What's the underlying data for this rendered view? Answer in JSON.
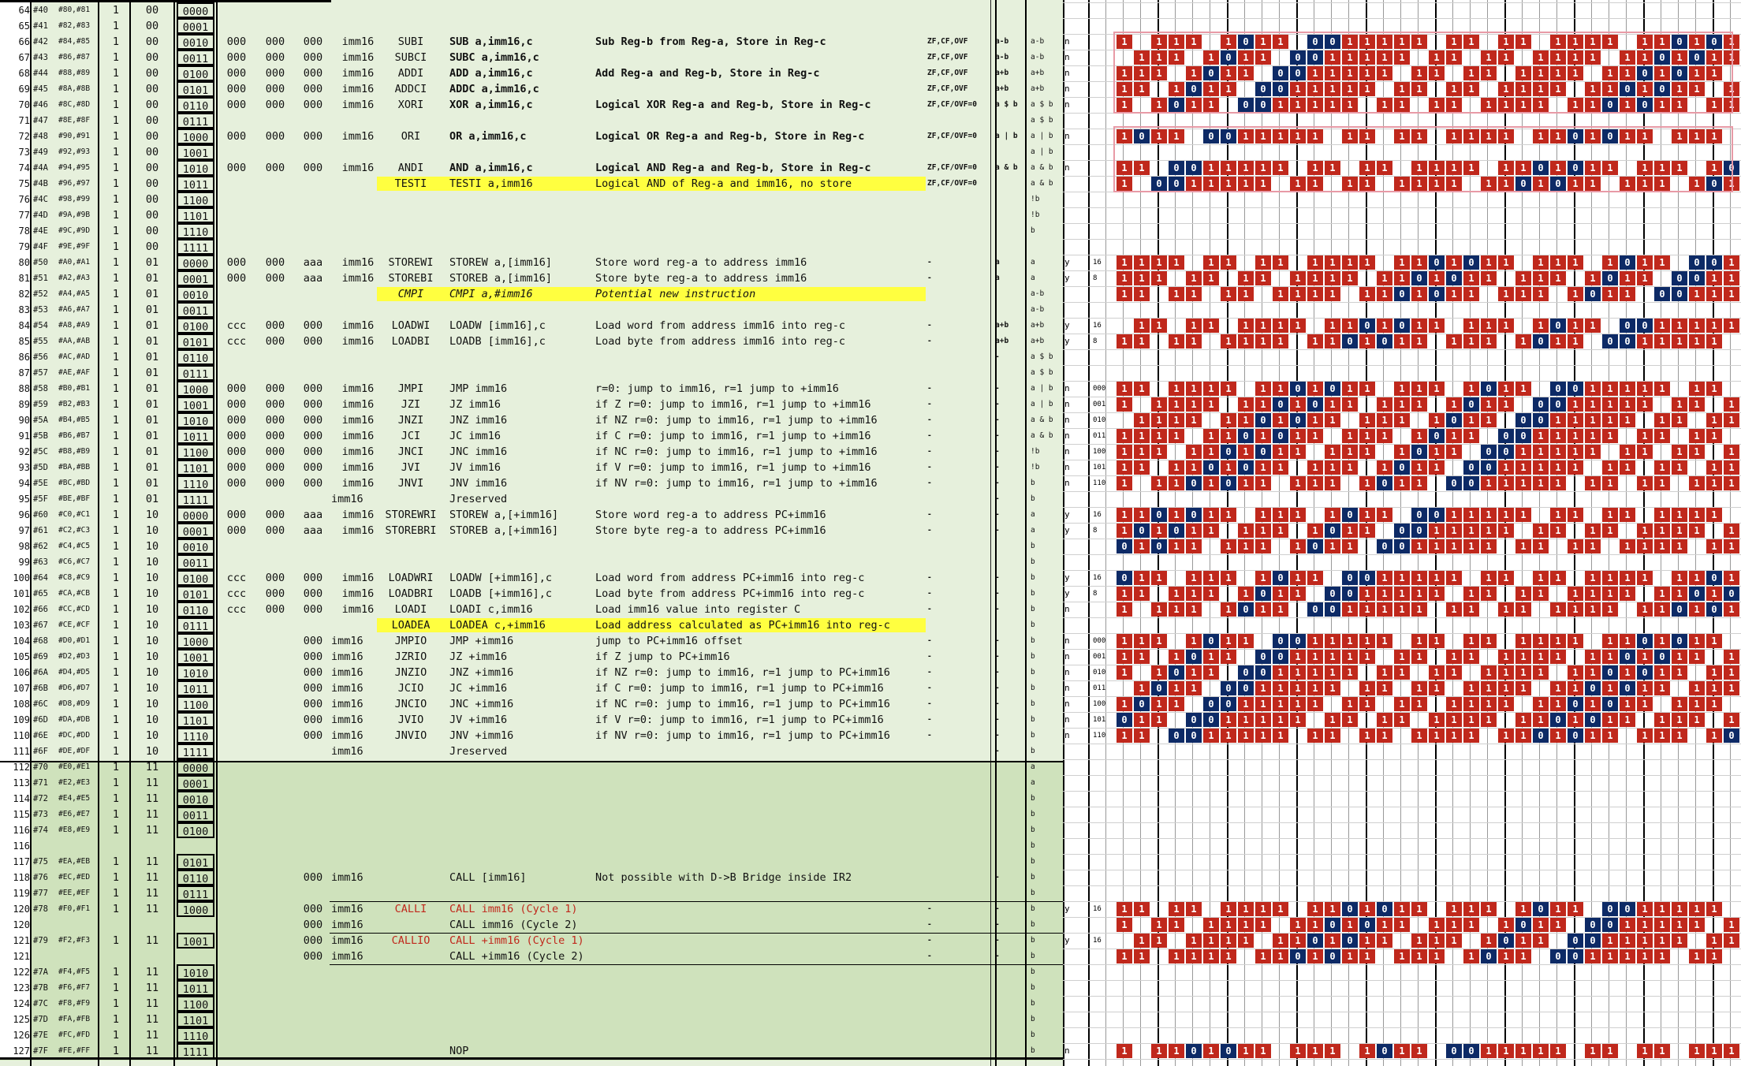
{
  "rows": [
    {
      "n": "64",
      "h": "#40",
      "p": "#80,#81",
      "one": "1",
      "two": "00",
      "op": "0000"
    },
    {
      "n": "65",
      "h": "#41",
      "p": "#82,#83",
      "one": "1",
      "two": "00",
      "op": "0001"
    },
    {
      "n": "66",
      "h": "#42",
      "p": "#84,#85",
      "one": "1",
      "two": "00",
      "op": "0010",
      "a": "000",
      "b": "000",
      "c": "000",
      "imm": "imm16",
      "mn": "SUBI",
      "syn": "SUB a,imm16,c",
      "desc": "Sub Reg-b from Reg-a, Store in Reg-c",
      "fl": "ZF,CF,OVF",
      "l1": "a-b",
      "l2": "a-b",
      "bold": true
    },
    {
      "n": "67",
      "h": "#43",
      "p": "#86,#87",
      "one": "1",
      "two": "00",
      "op": "0011",
      "a": "000",
      "b": "000",
      "c": "000",
      "imm": "imm16",
      "mn": "SUBCI",
      "syn": "SUBC a,imm16,c",
      "desc": "",
      "fl": "ZF,CF,OVF",
      "l1": "a-b",
      "l2": "a-b",
      "bold": true
    },
    {
      "n": "68",
      "h": "#44",
      "p": "#88,#89",
      "one": "1",
      "two": "00",
      "op": "0100",
      "a": "000",
      "b": "000",
      "c": "000",
      "imm": "imm16",
      "mn": "ADDI",
      "syn": "ADD a,imm16,c",
      "desc": "Add Reg-a and Reg-b, Store in Reg-c",
      "fl": "ZF,CF,OVF",
      "l1": "a+b",
      "l2": "a+b",
      "bold": true
    },
    {
      "n": "69",
      "h": "#45",
      "p": "#8A,#8B",
      "one": "1",
      "two": "00",
      "op": "0101",
      "a": "000",
      "b": "000",
      "c": "000",
      "imm": "imm16",
      "mn": "ADDCI",
      "syn": "ADDC a,imm16,c",
      "desc": "",
      "fl": "ZF,CF,OVF",
      "l1": "a+b",
      "l2": "a+b",
      "bold": true
    },
    {
      "n": "70",
      "h": "#46",
      "p": "#8C,#8D",
      "one": "1",
      "two": "00",
      "op": "0110",
      "a": "000",
      "b": "000",
      "c": "000",
      "imm": "imm16",
      "mn": "XORI",
      "syn": "XOR a,imm16,c",
      "desc": "Logical XOR Reg-a and Reg-b, Store in Reg-c",
      "fl": "ZF,CF/OVF=0",
      "l1": "a $ b",
      "l2": "a $ b",
      "bold": true
    },
    {
      "n": "71",
      "h": "#47",
      "p": "#8E,#8F",
      "one": "1",
      "two": "00",
      "op": "0111",
      "l2": "a $ b"
    },
    {
      "n": "72",
      "h": "#48",
      "p": "#90,#91",
      "one": "1",
      "two": "00",
      "op": "1000",
      "a": "000",
      "b": "000",
      "c": "000",
      "imm": "imm16",
      "mn": "ORI",
      "syn": "OR a,imm16,c",
      "desc": "Logical OR Reg-a and Reg-b, Store in Reg-c",
      "fl": "ZF,CF/OVF=0",
      "l1": "a | b",
      "l2": "a | b",
      "bold": true
    },
    {
      "n": "73",
      "h": "#49",
      "p": "#92,#93",
      "one": "1",
      "two": "00",
      "op": "1001",
      "l2": "a | b"
    },
    {
      "n": "74",
      "h": "#4A",
      "p": "#94,#95",
      "one": "1",
      "two": "00",
      "op": "1010",
      "a": "000",
      "b": "000",
      "c": "000",
      "imm": "imm16",
      "mn": "ANDI",
      "syn": "AND a,imm16,c",
      "desc": "Logical AND Reg-a and Reg-b, Store in Reg-c",
      "fl": "ZF,CF/OVF=0",
      "l1": "a & b",
      "l2": "a & b",
      "bold": true
    },
    {
      "n": "75",
      "h": "#4B",
      "p": "#96,#97",
      "one": "1",
      "two": "00",
      "op": "1011",
      "mn": "TESTI",
      "syn": "TESTI a,imm16",
      "desc": "Logical AND of Reg-a and imm16, no store",
      "fl": "ZF,CF/OVF=0",
      "l2": "a & b",
      "hl": true
    },
    {
      "n": "76",
      "h": "#4C",
      "p": "#98,#99",
      "one": "1",
      "two": "00",
      "op": "1100",
      "l2": "!b"
    },
    {
      "n": "77",
      "h": "#4D",
      "p": "#9A,#9B",
      "one": "1",
      "two": "00",
      "op": "1101",
      "l2": "!b"
    },
    {
      "n": "78",
      "h": "#4E",
      "p": "#9C,#9D",
      "one": "1",
      "two": "00",
      "op": "1110",
      "l2": "b"
    },
    {
      "n": "79",
      "h": "#4F",
      "p": "#9E,#9F",
      "one": "1",
      "two": "00",
      "op": "1111"
    },
    {
      "n": "80",
      "h": "#50",
      "p": "#A0,#A1",
      "one": "1",
      "two": "01",
      "op": "0000",
      "a": "000",
      "b": "000",
      "c": "aaa",
      "imm": "imm16",
      "mn": "STOREWI",
      "syn": "STOREW a,[imm16]",
      "desc": "Store word reg-a to address imm16",
      "fl": "-",
      "l1": "a",
      "l2": "a"
    },
    {
      "n": "81",
      "h": "#51",
      "p": "#A2,#A3",
      "one": "1",
      "two": "01",
      "op": "0001",
      "a": "000",
      "b": "000",
      "c": "aaa",
      "imm": "imm16",
      "mn": "STOREBI",
      "syn": "STOREB a,[imm16]",
      "desc": "Store byte reg-a to address imm16",
      "fl": "-",
      "l1": "a",
      "l2": "a"
    },
    {
      "n": "82",
      "h": "#52",
      "p": "#A4,#A5",
      "one": "1",
      "two": "01",
      "op": "0010",
      "mn": "CMPI",
      "syn": "CMPI a,#imm16",
      "desc": "Potential new instruction",
      "l2": "a-b",
      "hl": true,
      "it": true
    },
    {
      "n": "83",
      "h": "#53",
      "p": "#A6,#A7",
      "one": "1",
      "two": "01",
      "op": "0011",
      "l2": "a-b"
    },
    {
      "n": "84",
      "h": "#54",
      "p": "#A8,#A9",
      "one": "1",
      "two": "01",
      "op": "0100",
      "a": "ccc",
      "b": "000",
      "c": "000",
      "imm": "imm16",
      "mn": "LOADWI",
      "syn": "LOADW [imm16],c",
      "desc": "Load word from address imm16 into reg-c",
      "fl": "-",
      "l1": "a+b",
      "l2": "a+b"
    },
    {
      "n": "85",
      "h": "#55",
      "p": "#AA,#AB",
      "one": "1",
      "two": "01",
      "op": "0101",
      "a": "ccc",
      "b": "000",
      "c": "000",
      "imm": "imm16",
      "mn": "LOADBI",
      "syn": "LOADB [imm16],c",
      "desc": "Load byte from address imm16 into reg-c",
      "fl": "-",
      "l1": "a+b",
      "l2": "a+b"
    },
    {
      "n": "86",
      "h": "#56",
      "p": "#AC,#AD",
      "one": "1",
      "two": "01",
      "op": "0110",
      "l1": "-",
      "l2": "a $ b"
    },
    {
      "n": "87",
      "h": "#57",
      "p": "#AE,#AF",
      "one": "1",
      "two": "01",
      "op": "0111",
      "l2": "a $ b"
    },
    {
      "n": "88",
      "h": "#58",
      "p": "#B0,#B1",
      "one": "1",
      "two": "01",
      "op": "1000",
      "a": "000",
      "b": "000",
      "c": "000",
      "imm": "imm16",
      "mn": "JMPI",
      "syn": "JMP imm16",
      "desc": "r=0: jump to imm16, r=1 jump to +imm16",
      "fl": "-",
      "l1": "-",
      "l2": "a | b"
    },
    {
      "n": "89",
      "h": "#59",
      "p": "#B2,#B3",
      "one": "1",
      "two": "01",
      "op": "1001",
      "a": "000",
      "b": "000",
      "c": "000",
      "imm": "imm16",
      "mn": "JZI",
      "syn": "JZ imm16",
      "desc": "if Z r=0: jump to imm16, r=1 jump to +imm16",
      "fl": "-",
      "l1": "-",
      "l2": "a | b"
    },
    {
      "n": "90",
      "h": "#5A",
      "p": "#B4,#B5",
      "one": "1",
      "two": "01",
      "op": "1010",
      "a": "000",
      "b": "000",
      "c": "000",
      "imm": "imm16",
      "mn": "JNZI",
      "syn": "JNZ imm16",
      "desc": "if NZ r=0: jump to imm16, r=1 jump to +imm16",
      "fl": "-",
      "l1": "-",
      "l2": "a & b"
    },
    {
      "n": "91",
      "h": "#5B",
      "p": "#B6,#B7",
      "one": "1",
      "two": "01",
      "op": "1011",
      "a": "000",
      "b": "000",
      "c": "000",
      "imm": "imm16",
      "mn": "JCI",
      "syn": "JC imm16",
      "desc": "if C r=0: jump to imm16, r=1 jump to +imm16",
      "fl": "-",
      "l1": "-",
      "l2": "a & b"
    },
    {
      "n": "92",
      "h": "#5C",
      "p": "#B8,#B9",
      "one": "1",
      "two": "01",
      "op": "1100",
      "a": "000",
      "b": "000",
      "c": "000",
      "imm": "imm16",
      "mn": "JNCI",
      "syn": "JNC imm16",
      "desc": "if NC r=0: jump to imm16, r=1 jump to +imm16",
      "fl": "-",
      "l1": "-",
      "l2": "!b"
    },
    {
      "n": "93",
      "h": "#5D",
      "p": "#BA,#BB",
      "one": "1",
      "two": "01",
      "op": "1101",
      "a": "000",
      "b": "000",
      "c": "000",
      "imm": "imm16",
      "mn": "JVI",
      "syn": "JV imm16",
      "desc": "if V r=0: jump to imm16, r=1 jump to +imm16",
      "fl": "-",
      "l1": "-",
      "l2": "!b"
    },
    {
      "n": "94",
      "h": "#5E",
      "p": "#BC,#BD",
      "one": "1",
      "two": "01",
      "op": "1110",
      "a": "000",
      "b": "000",
      "c": "000",
      "imm": "imm16",
      "mn": "JNVI",
      "syn": "JNV imm16",
      "desc": "if NV r=0: jump to imm16, r=1 jump to +imm16",
      "fl": "-",
      "l1": "-",
      "l2": "b"
    },
    {
      "n": "95",
      "h": "#5F",
      "p": "#BE,#BF",
      "one": "1",
      "two": "01",
      "op": "1111",
      "imm": "imm16",
      "syn": "Jreserved",
      "l1": "-",
      "l2": "b"
    },
    {
      "n": "96",
      "h": "#60",
      "p": "#C0,#C1",
      "one": "1",
      "two": "10",
      "op": "0000",
      "a": "000",
      "b": "000",
      "c": "aaa",
      "imm": "imm16",
      "mn": "STOREWRI",
      "syn": "STOREW a,[+imm16]",
      "desc": "Store word reg-a to address PC+imm16",
      "fl": "-",
      "l1": "-",
      "l2": "a"
    },
    {
      "n": "97",
      "h": "#61",
      "p": "#C2,#C3",
      "one": "1",
      "two": "10",
      "op": "0001",
      "a": "000",
      "b": "000",
      "c": "aaa",
      "imm": "imm16",
      "mn": "STOREBRI",
      "syn": "STOREB a,[+imm16]",
      "desc": "Store byte reg-a to address PC+imm16",
      "fl": "-",
      "l1": "-",
      "l2": "a"
    },
    {
      "n": "98",
      "h": "#62",
      "p": "#C4,#C5",
      "one": "1",
      "two": "10",
      "op": "0010",
      "l2": "b"
    },
    {
      "n": "99",
      "h": "#63",
      "p": "#C6,#C7",
      "one": "1",
      "two": "10",
      "op": "0011",
      "l2": "b"
    },
    {
      "n": "100",
      "h": "#64",
      "p": "#C8,#C9",
      "one": "1",
      "two": "10",
      "op": "0100",
      "a": "ccc",
      "b": "000",
      "c": "000",
      "imm": "imm16",
      "mn": "LOADWRI",
      "syn": "LOADW [+imm16],c",
      "desc": "Load word from address PC+imm16 into reg-c",
      "fl": "-",
      "l1": "-",
      "l2": "b"
    },
    {
      "n": "101",
      "h": "#65",
      "p": "#CA,#CB",
      "one": "1",
      "two": "10",
      "op": "0101",
      "a": "ccc",
      "b": "000",
      "c": "000",
      "imm": "imm16",
      "mn": "LOADBRI",
      "syn": "LOADB [+imm16],c",
      "desc": "Load byte from address PC+imm16 into reg-c",
      "fl": "-",
      "l1": "-",
      "l2": "b"
    },
    {
      "n": "102",
      "h": "#66",
      "p": "#CC,#CD",
      "one": "1",
      "two": "10",
      "op": "0110",
      "a": "ccc",
      "b": "000",
      "c": "000",
      "imm": "imm16",
      "mn": "LOADI",
      "syn": "LOADI c,imm16",
      "desc": "Load imm16 value into register C",
      "fl": "-",
      "l1": "-",
      "l2": "b"
    },
    {
      "n": "103",
      "h": "#67",
      "p": "#CE,#CF",
      "one": "1",
      "two": "10",
      "op": "0111",
      "mn": "LOADEA",
      "syn": "LOADEA c,+imm16",
      "desc": "Load address calculated as PC+imm16 into reg-c",
      "l2": "b",
      "hl": true
    },
    {
      "n": "104",
      "h": "#68",
      "p": "#D0,#D1",
      "one": "1",
      "two": "10",
      "op": "1000",
      "c": "000",
      "imm": "imm16",
      "mn": "JMPIO",
      "syn": "JMP +imm16",
      "desc": "jump to PC+imm16 offset",
      "fl": "-",
      "l1": "-",
      "l2": "b"
    },
    {
      "n": "105",
      "h": "#69",
      "p": "#D2,#D3",
      "one": "1",
      "two": "10",
      "op": "1001",
      "c": "000",
      "imm": "imm16",
      "mn": "JZRIO",
      "syn": "JZ +imm16",
      "desc": "if Z jump to PC+imm16",
      "fl": "-",
      "l1": "-",
      "l2": "b"
    },
    {
      "n": "106",
      "h": "#6A",
      "p": "#D4,#D5",
      "one": "1",
      "two": "10",
      "op": "1010",
      "c": "000",
      "imm": "imm16",
      "mn": "JNZIO",
      "syn": "JNZ +imm16",
      "desc": "if NZ r=0: jump to imm16, r=1 jump to PC+imm16",
      "fl": "-",
      "l1": "-",
      "l2": "b"
    },
    {
      "n": "107",
      "h": "#6B",
      "p": "#D6,#D7",
      "one": "1",
      "two": "10",
      "op": "1011",
      "c": "000",
      "imm": "imm16",
      "mn": "JCIO",
      "syn": "JC +imm16",
      "desc": "if C r=0: jump to imm16, r=1 jump to PC+imm16",
      "fl": "-",
      "l1": "-",
      "l2": "b"
    },
    {
      "n": "108",
      "h": "#6C",
      "p": "#D8,#D9",
      "one": "1",
      "two": "10",
      "op": "1100",
      "c": "000",
      "imm": "imm16",
      "mn": "JNCIO",
      "syn": "JNC +imm16",
      "desc": "if NC r=0: jump to imm16, r=1 jump to PC+imm16",
      "fl": "-",
      "l1": "-",
      "l2": "b"
    },
    {
      "n": "109",
      "h": "#6D",
      "p": "#DA,#DB",
      "one": "1",
      "two": "10",
      "op": "1101",
      "c": "000",
      "imm": "imm16",
      "mn": "JVIO",
      "syn": "JV +imm16",
      "desc": "if V r=0: jump to imm16, r=1 jump to PC+imm16",
      "fl": "-",
      "l1": "-",
      "l2": "b"
    },
    {
      "n": "110",
      "h": "#6E",
      "p": "#DC,#DD",
      "one": "1",
      "two": "10",
      "op": "1110",
      "c": "000",
      "imm": "imm16",
      "mn": "JNVIO",
      "syn": "JNV +imm16",
      "desc": "if NV r=0: jump to imm16, r=1 jump to PC+imm16",
      "fl": "-",
      "l1": "-",
      "l2": "b"
    },
    {
      "n": "111",
      "h": "#6F",
      "p": "#DE,#DF",
      "one": "1",
      "two": "10",
      "op": "1111",
      "imm": "imm16",
      "syn": "Jreserved",
      "l1": "-",
      "l2": "b"
    },
    {
      "n": "112",
      "h": "#70",
      "p": "#E0,#E1",
      "one": "1",
      "two": "11",
      "op": "0000",
      "l2": "a"
    },
    {
      "n": "113",
      "h": "#71",
      "p": "#E2,#E3",
      "one": "1",
      "two": "11",
      "op": "0001",
      "l2": "a"
    },
    {
      "n": "114",
      "h": "#72",
      "p": "#E4,#E5",
      "one": "1",
      "two": "11",
      "op": "0010",
      "l2": "b"
    },
    {
      "n": "115",
      "h": "#73",
      "p": "#E6,#E7",
      "one": "1",
      "two": "11",
      "op": "0011",
      "l2": "b"
    },
    {
      "n": "116",
      "h": "#74",
      "p": "#E8,#E9",
      "one": "1",
      "two": "11",
      "op": "0100",
      "l2": "b"
    },
    {
      "n": "116",
      "h": "",
      "p": "",
      "one": "",
      "two": "",
      "op": "",
      "l2": "b"
    },
    {
      "n": "117",
      "h": "#75",
      "p": "#EA,#EB",
      "one": "1",
      "two": "11",
      "op": "0101",
      "l2": "b"
    },
    {
      "n": "118",
      "h": "#76",
      "p": "#EC,#ED",
      "one": "1",
      "two": "11",
      "op": "0110",
      "c": "000",
      "imm": "imm16",
      "syn": "CALL [imm16]",
      "desc": "Not possible with D->B Bridge inside IR2",
      "l1": "-",
      "l2": "b"
    },
    {
      "n": "119",
      "h": "#77",
      "p": "#EE,#EF",
      "one": "1",
      "two": "11",
      "op": "0111",
      "l2": "b"
    },
    {
      "n": "120",
      "h": "#78",
      "p": "#F0,#F1",
      "one": "1",
      "two": "11",
      "op": "1000",
      "c": "000",
      "imm": "imm16",
      "mn": "CALLI",
      "syn": "CALL imm16 (Cycle 1)",
      "fl": "-",
      "l1": "-",
      "l2": "b",
      "red": true
    },
    {
      "n": "120",
      "h": "",
      "p": "",
      "one": "",
      "two": "",
      "op": "",
      "c": "000",
      "imm": "imm16",
      "syn": "CALL imm16 (Cycle 2)",
      "fl": "-",
      "l1": "-",
      "l2": "b"
    },
    {
      "n": "121",
      "h": "#79",
      "p": "#F2,#F3",
      "one": "1",
      "two": "11",
      "op": "1001",
      "c": "000",
      "imm": "imm16",
      "mn": "CALLIO",
      "syn": "CALL +imm16 (Cycle 1)",
      "fl": "-",
      "l1": "-",
      "l2": "b",
      "red": true
    },
    {
      "n": "121",
      "h": "",
      "p": "",
      "one": "",
      "two": "",
      "op": "",
      "c": "000",
      "imm": "imm16",
      "syn": "CALL +imm16 (Cycle 2)",
      "fl": "-",
      "l1": "-",
      "l2": "b"
    },
    {
      "n": "122",
      "h": "#7A",
      "p": "#F4,#F5",
      "one": "1",
      "two": "11",
      "op": "1010",
      "l2": "b"
    },
    {
      "n": "123",
      "h": "#7B",
      "p": "#F6,#F7",
      "one": "1",
      "two": "11",
      "op": "1011",
      "l2": "b"
    },
    {
      "n": "124",
      "h": "#7C",
      "p": "#F8,#F9",
      "one": "1",
      "two": "11",
      "op": "1100",
      "l2": "b"
    },
    {
      "n": "125",
      "h": "#7D",
      "p": "#FA,#FB",
      "one": "1",
      "two": "11",
      "op": "1101",
      "l2": "b"
    },
    {
      "n": "126",
      "h": "#7E",
      "p": "#FC,#FD",
      "one": "1",
      "two": "11",
      "op": "1110",
      "l2": "b"
    },
    {
      "n": "127",
      "h": "#7F",
      "p": "#FE,#FF",
      "one": "1",
      "two": "11",
      "op": "1111",
      "syn": "NOP",
      "l2": "b"
    }
  ],
  "right_meta": [
    {
      "r": 2,
      "m": "n"
    },
    {
      "r": 3,
      "m": "n"
    },
    {
      "r": 4,
      "m": "n"
    },
    {
      "r": 5,
      "m": "n"
    },
    {
      "r": 6,
      "m": "n"
    },
    {
      "r": 8,
      "m": "n"
    },
    {
      "r": 10,
      "m": "n"
    },
    {
      "r": 16,
      "m": "y",
      "w": "16"
    },
    {
      "r": 17,
      "m": "y",
      "w": "8"
    },
    {
      "r": 20,
      "m": "y",
      "w": "16"
    },
    {
      "r": 21,
      "m": "y",
      "w": "8"
    },
    {
      "r": 24,
      "m": "n",
      "w": "000"
    },
    {
      "r": 25,
      "m": "n",
      "w": "001"
    },
    {
      "r": 26,
      "m": "n",
      "w": "010"
    },
    {
      "r": 27,
      "m": "n",
      "w": "011"
    },
    {
      "r": 28,
      "m": "n",
      "w": "100"
    },
    {
      "r": 29,
      "m": "n",
      "w": "101"
    },
    {
      "r": 30,
      "m": "n",
      "w": "110"
    },
    {
      "r": 32,
      "m": "y",
      "w": "16"
    },
    {
      "r": 33,
      "m": "y",
      "w": "8"
    },
    {
      "r": 36,
      "m": "y",
      "w": "16"
    },
    {
      "r": 37,
      "m": "y",
      "w": "8"
    },
    {
      "r": 38,
      "m": "n"
    },
    {
      "r": 40,
      "m": "n",
      "w": "000"
    },
    {
      "r": 41,
      "m": "n",
      "w": "001"
    },
    {
      "r": 42,
      "m": "n",
      "w": "010"
    },
    {
      "r": 43,
      "m": "n",
      "w": "011"
    },
    {
      "r": 44,
      "m": "n",
      "w": "100"
    },
    {
      "r": 45,
      "m": "n",
      "w": "101"
    },
    {
      "r": 46,
      "m": "n",
      "w": "110"
    },
    {
      "r": 57,
      "m": "y",
      "w": "16"
    },
    {
      "r": 59,
      "m": "y",
      "w": "16"
    },
    {
      "r": 66,
      "m": "n"
    }
  ],
  "bit_rows": [
    2,
    3,
    4,
    5,
    6,
    8,
    10,
    11,
    16,
    17,
    18,
    20,
    21,
    24,
    25,
    26,
    27,
    28,
    29,
    30,
    32,
    33,
    34,
    36,
    37,
    38,
    40,
    41,
    42,
    43,
    44,
    45,
    46,
    57,
    58,
    59,
    60,
    66
  ],
  "colors": {
    "sheet": "#e6f0dc",
    "sheet_dark": "#cfe2bc",
    "highlight": "#ffff40",
    "bit_one": "#c0281c",
    "bit_zero": "#0d2a66",
    "accent_red": "#c0281c"
  }
}
